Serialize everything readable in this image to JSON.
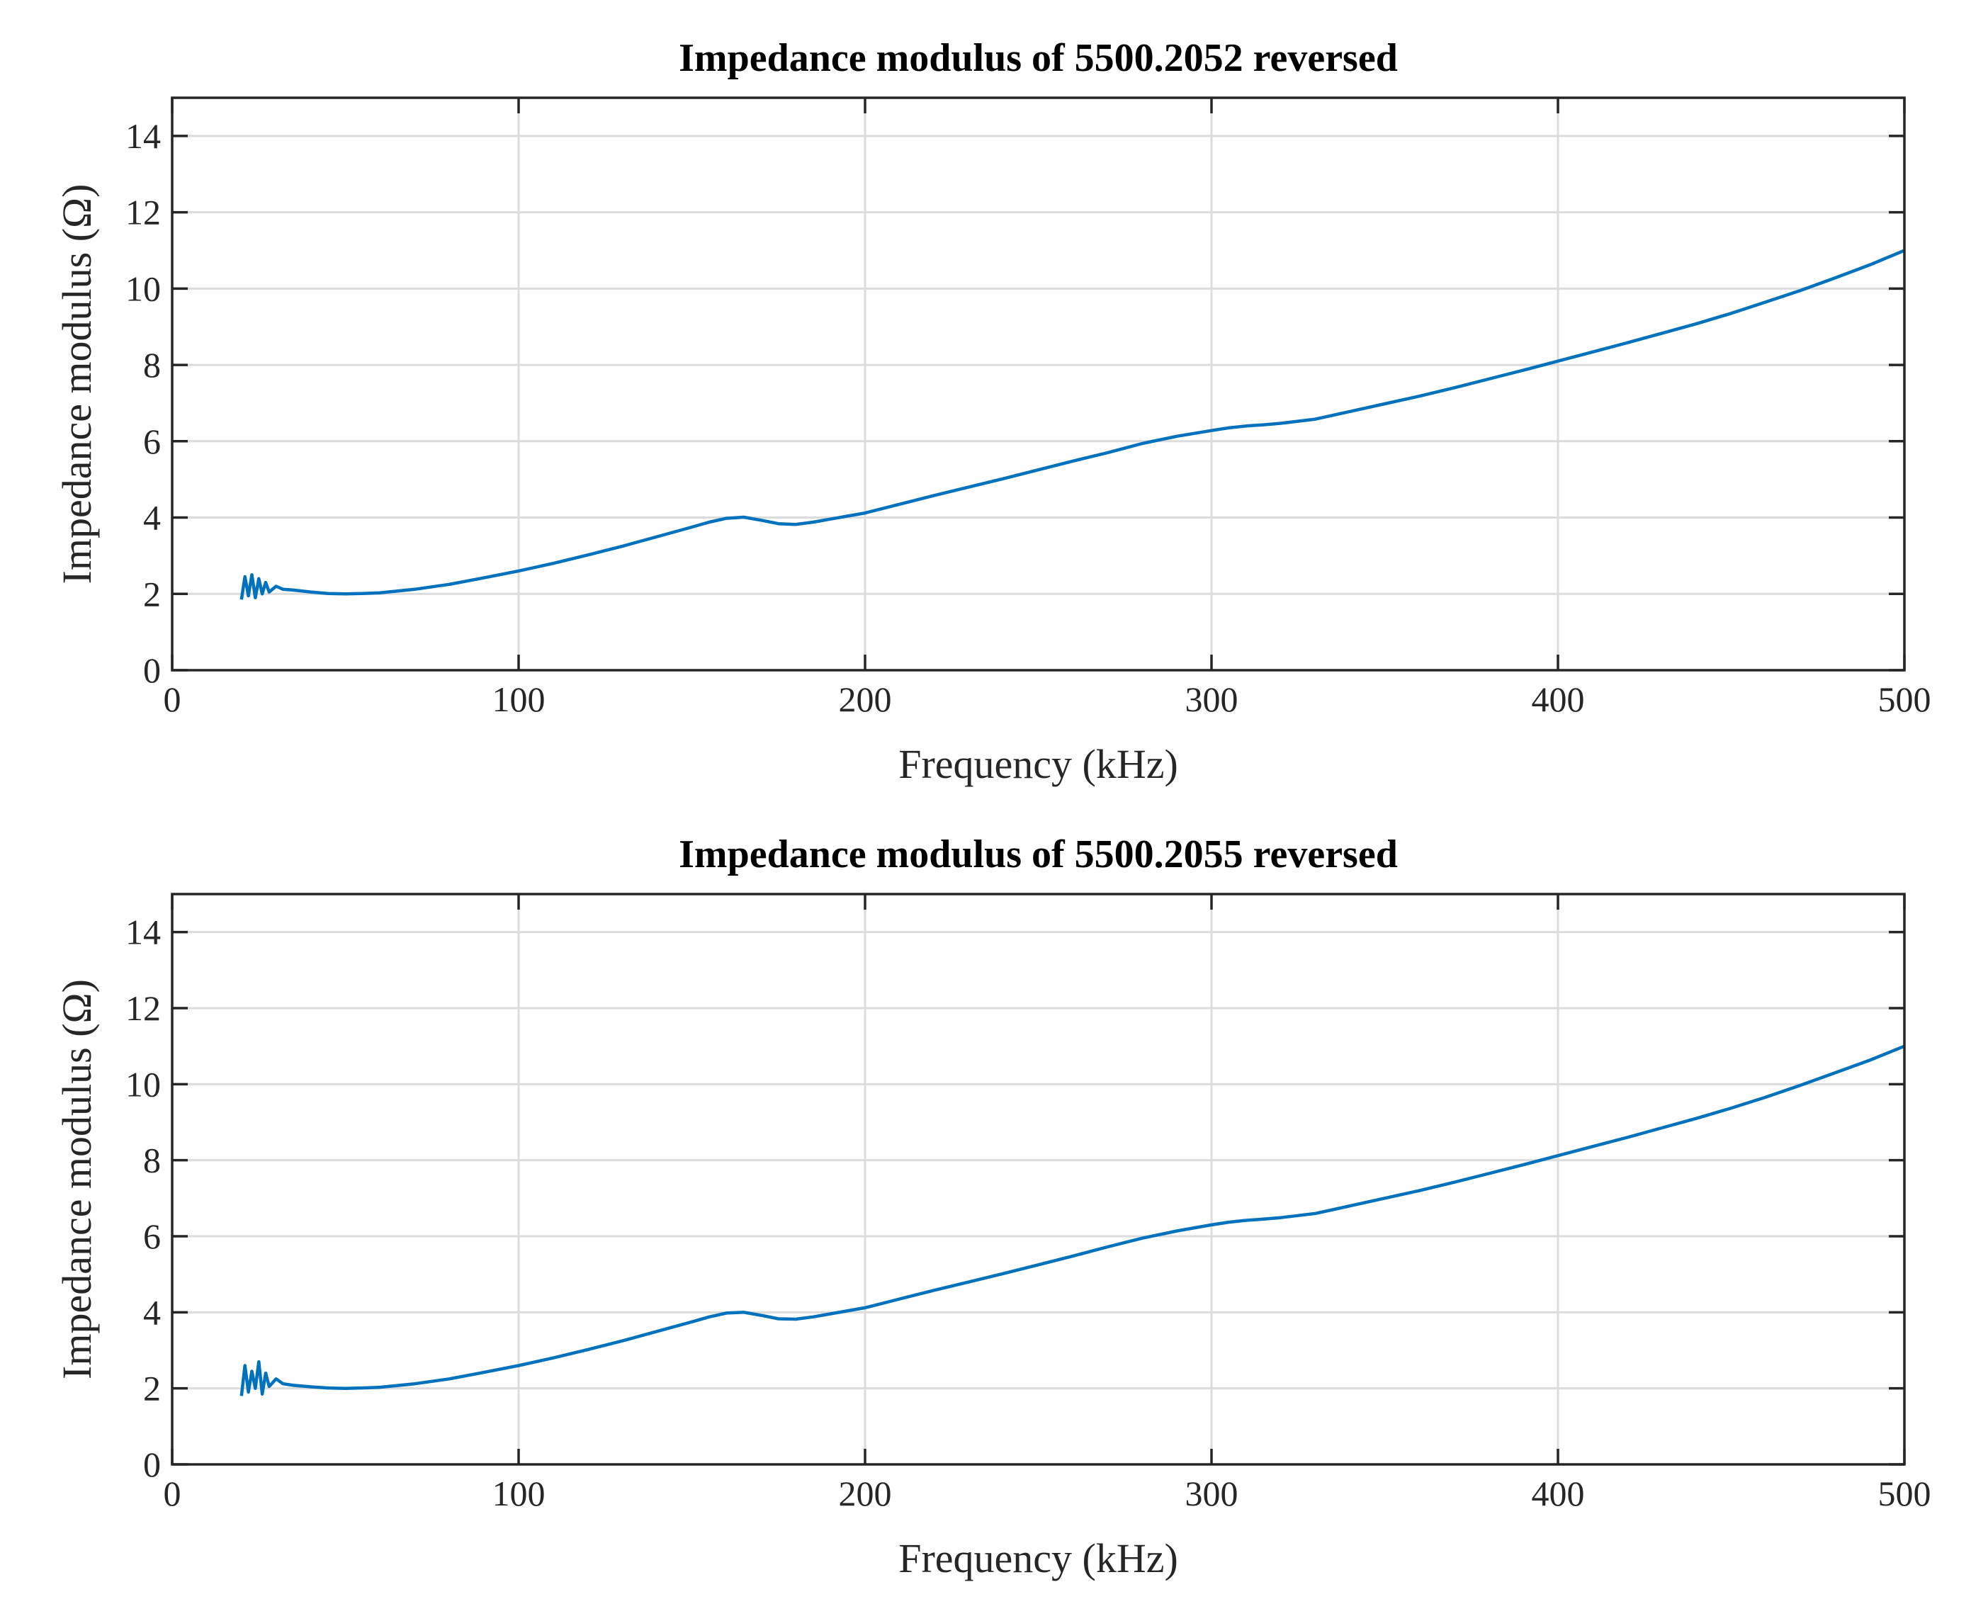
{
  "chart_data": [
    {
      "type": "line",
      "title": "Impedance modulus of 5500.2052 reversed",
      "xlabel": "Frequency (kHz)",
      "ylabel": "Impedance modulus (Ω)",
      "xlim": [
        0,
        500
      ],
      "ylim": [
        0,
        15
      ],
      "xticks": [
        0,
        100,
        200,
        300,
        400,
        500
      ],
      "yticks": [
        0,
        2,
        4,
        6,
        8,
        10,
        12,
        14
      ],
      "grid": true,
      "color": "#0072bd",
      "series": [
        {
          "name": "Impedance modulus",
          "x": [
            20,
            21,
            22,
            23,
            24,
            25,
            26,
            27,
            28,
            30,
            32,
            35,
            40,
            45,
            50,
            55,
            60,
            70,
            80,
            90,
            100,
            110,
            120,
            130,
            140,
            150,
            155,
            160,
            165,
            170,
            175,
            180,
            185,
            190,
            200,
            210,
            220,
            230,
            240,
            250,
            260,
            270,
            280,
            290,
            300,
            305,
            310,
            315,
            320,
            330,
            340,
            350,
            360,
            370,
            380,
            390,
            400,
            410,
            420,
            430,
            440,
            450,
            460,
            470,
            480,
            490,
            500
          ],
          "y": [
            1.85,
            2.45,
            1.95,
            2.5,
            1.9,
            2.4,
            2.0,
            2.3,
            2.05,
            2.2,
            2.12,
            2.1,
            2.05,
            2.01,
            2.0,
            2.01,
            2.03,
            2.12,
            2.25,
            2.42,
            2.6,
            2.8,
            3.02,
            3.25,
            3.5,
            3.75,
            3.88,
            3.98,
            4.01,
            3.93,
            3.84,
            3.82,
            3.88,
            3.96,
            4.12,
            4.35,
            4.58,
            4.8,
            5.02,
            5.25,
            5.48,
            5.7,
            5.94,
            6.13,
            6.28,
            6.35,
            6.4,
            6.43,
            6.47,
            6.58,
            6.78,
            6.98,
            7.18,
            7.4,
            7.63,
            7.86,
            8.1,
            8.34,
            8.58,
            8.83,
            9.08,
            9.35,
            9.65,
            9.95,
            10.28,
            10.62,
            11.0
          ]
        }
      ]
    },
    {
      "type": "line",
      "title": "Impedance modulus of 5500.2055 reversed",
      "xlabel": "Frequency (kHz)",
      "ylabel": "Impedance modulus (Ω)",
      "xlim": [
        0,
        500
      ],
      "ylim": [
        0,
        15
      ],
      "xticks": [
        0,
        100,
        200,
        300,
        400,
        500
      ],
      "yticks": [
        0,
        2,
        4,
        6,
        8,
        10,
        12,
        14
      ],
      "grid": true,
      "color": "#0072bd",
      "series": [
        {
          "name": "Impedance modulus",
          "x": [
            20,
            21,
            22,
            23,
            24,
            25,
            26,
            27,
            28,
            30,
            32,
            35,
            40,
            45,
            50,
            55,
            60,
            70,
            80,
            90,
            100,
            110,
            120,
            130,
            140,
            150,
            155,
            160,
            165,
            170,
            175,
            180,
            185,
            190,
            200,
            210,
            220,
            230,
            240,
            250,
            260,
            270,
            280,
            290,
            300,
            305,
            310,
            315,
            320,
            330,
            340,
            350,
            360,
            370,
            380,
            390,
            400,
            410,
            420,
            430,
            440,
            450,
            460,
            470,
            480,
            490,
            500
          ],
          "y": [
            1.8,
            2.6,
            1.9,
            2.45,
            2.0,
            2.7,
            1.85,
            2.4,
            2.05,
            2.25,
            2.12,
            2.08,
            2.04,
            2.01,
            2.0,
            2.01,
            2.03,
            2.12,
            2.25,
            2.42,
            2.6,
            2.8,
            3.02,
            3.25,
            3.5,
            3.75,
            3.88,
            3.98,
            4.0,
            3.92,
            3.83,
            3.82,
            3.88,
            3.96,
            4.12,
            4.35,
            4.58,
            4.8,
            5.02,
            5.25,
            5.48,
            5.72,
            5.95,
            6.14,
            6.3,
            6.37,
            6.42,
            6.45,
            6.49,
            6.6,
            6.8,
            7.0,
            7.2,
            7.42,
            7.65,
            7.88,
            8.12,
            8.36,
            8.6,
            8.85,
            9.1,
            9.37,
            9.66,
            9.97,
            10.3,
            10.63,
            11.0
          ]
        }
      ]
    }
  ]
}
